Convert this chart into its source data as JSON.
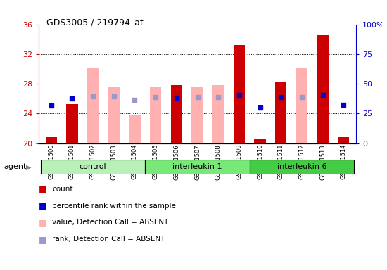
{
  "title": "GDS3005 / 219794_at",
  "samples": [
    "GSM211500",
    "GSM211501",
    "GSM211502",
    "GSM211503",
    "GSM211504",
    "GSM211505",
    "GSM211506",
    "GSM211507",
    "GSM211508",
    "GSM211509",
    "GSM211510",
    "GSM211511",
    "GSM211512",
    "GSM211513",
    "GSM211514"
  ],
  "groups": [
    {
      "label": "control",
      "start": 0,
      "end": 5,
      "color": "#b8f0b8"
    },
    {
      "label": "interleukin 1",
      "start": 5,
      "end": 10,
      "color": "#78e878"
    },
    {
      "label": "interleukin 6",
      "start": 10,
      "end": 15,
      "color": "#44cc44"
    }
  ],
  "count_values": [
    20.8,
    25.3,
    null,
    null,
    null,
    null,
    27.8,
    null,
    null,
    33.2,
    20.5,
    28.2,
    null,
    34.5,
    20.8
  ],
  "pink_bar_top": [
    null,
    null,
    30.2,
    27.5,
    23.8,
    27.5,
    null,
    27.5,
    27.8,
    null,
    null,
    null,
    30.2,
    null,
    null
  ],
  "pink_bar_bottom": [
    null,
    null,
    20.0,
    20.0,
    20.0,
    20.0,
    null,
    20.0,
    20.0,
    null,
    null,
    null,
    20.0,
    null,
    null
  ],
  "blue_square_y": [
    25.1,
    26.0,
    null,
    null,
    null,
    null,
    26.1,
    null,
    null,
    26.5,
    24.8,
    26.2,
    null,
    26.5,
    25.2
  ],
  "blue_square_y_absent": [
    null,
    null,
    26.3,
    26.3,
    25.8,
    26.2,
    null,
    26.2,
    26.2,
    null,
    null,
    null,
    26.2,
    null,
    null
  ],
  "ylim_left": [
    20,
    36
  ],
  "ylim_right": [
    0,
    100
  ],
  "yticks_left": [
    20,
    24,
    28,
    32,
    36
  ],
  "yticks_right": [
    0,
    25,
    50,
    75,
    100
  ],
  "ytick_labels_right": [
    "0",
    "25",
    "50",
    "75",
    "100%"
  ],
  "bar_color_red": "#cc0000",
  "bar_color_pink": "#ffb0b0",
  "bar_color_blue": "#0000cc",
  "bar_color_blue_absent": "#9999cc",
  "left_axis_color": "#cc0000",
  "right_axis_color": "#0000cc",
  "bar_width": 0.55,
  "background_plot": "#ffffff",
  "agent_label": "agent",
  "legend_labels": [
    "count",
    "percentile rank within the sample",
    "value, Detection Call = ABSENT",
    "rank, Detection Call = ABSENT"
  ]
}
